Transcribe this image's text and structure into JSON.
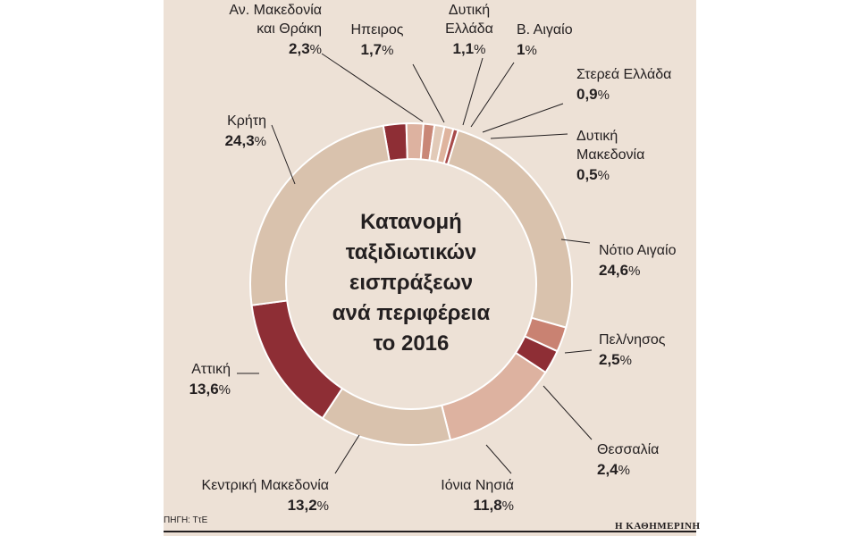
{
  "chart_data": {
    "type": "pie",
    "style": "donut",
    "title": [
      "Κατανομή",
      "ταξιδιωτικών",
      "εισπράξεων",
      "ανά περιφέρεια",
      "το 2016"
    ],
    "unit": "%",
    "slices": [
      {
        "label": [
          "Αν. Μακεδονία",
          "και Θράκη"
        ],
        "value": 2.3,
        "value_text": "2,3",
        "color": "#8e2e35"
      },
      {
        "label": [
          "Ηπειρος"
        ],
        "value": 1.7,
        "value_text": "1,7",
        "color": "#ddb2a0"
      },
      {
        "label": [
          "Δυτική",
          "Ελλάδα"
        ],
        "value": 1.1,
        "value_text": "1,1",
        "color": "#c98777"
      },
      {
        "label": [
          "Β. Αιγαίο"
        ],
        "value": 1,
        "value_text": "1",
        "color": "#e2cab8"
      },
      {
        "label": [
          "Στερεά Ελλάδα"
        ],
        "value": 0.9,
        "value_text": "0,9",
        "color": "#dfb49e"
      },
      {
        "label": [
          "Δυτική",
          "Μακεδονία"
        ],
        "value": 0.5,
        "value_text": "0,5",
        "color": "#a84a4a"
      },
      {
        "label": [
          "Νότιο Αιγαίο"
        ],
        "value": 24.6,
        "value_text": "24,6",
        "color": "#d9c2ad"
      },
      {
        "label": [
          "Πελ/νησος"
        ],
        "value": 2.5,
        "value_text": "2,5",
        "color": "#c98272"
      },
      {
        "label": [
          "Θεσσαλία"
        ],
        "value": 2.4,
        "value_text": "2,4",
        "color": "#8e2e35"
      },
      {
        "label": [
          "Ιόνια Νησιά"
        ],
        "value": 11.8,
        "value_text": "11,8",
        "color": "#ddb2a0"
      },
      {
        "label": [
          "Κεντρική Μακεδονία"
        ],
        "value": 13.2,
        "value_text": "13,2",
        "color": "#d9c2ad"
      },
      {
        "label": [
          "Αττική"
        ],
        "value": 13.6,
        "value_text": "13,6",
        "color": "#8e2e35"
      },
      {
        "label": [
          "Κρήτη"
        ],
        "value": 24.3,
        "value_text": "24,3",
        "color": "#d9c2ad"
      }
    ]
  },
  "footer": {
    "source": "ΠΗΓΗ: ΤτΕ",
    "brand": "Η ΚΑΘΗΜΕΡΙΝΗ"
  }
}
